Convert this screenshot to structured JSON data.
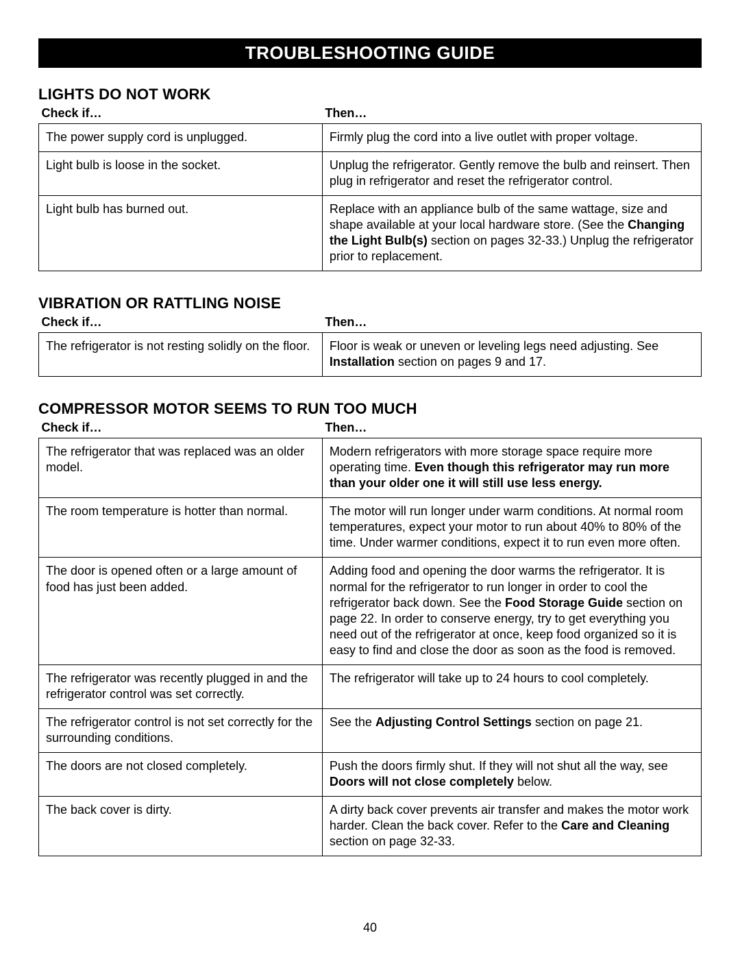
{
  "banner": "TROUBLESHOOTING GUIDE",
  "page_number": "40",
  "columns": {
    "check": "Check if…",
    "then": "Then…"
  },
  "sections": [
    {
      "title": "LIGHTS DO NOT WORK",
      "rows": [
        {
          "check": "The power supply cord is unplugged.",
          "then": [
            {
              "t": "Firmly plug the cord into a live outlet with proper voltage."
            }
          ]
        },
        {
          "check": "Light bulb is loose in the socket.",
          "then": [
            {
              "t": "Unplug the refrigerator. Gently remove the bulb and reinsert. Then plug in refrigerator and reset the refrigerator control."
            }
          ]
        },
        {
          "check": "Light bulb has burned out.",
          "then": [
            {
              "t": "Replace with an appliance bulb of the same wattage, size and shape available at your local hardware store. (See the "
            },
            {
              "t": "Changing the Light Bulb(s)",
              "b": true
            },
            {
              "t": " section on pages 32-33.) Unplug the refrigerator prior to replacement."
            }
          ]
        }
      ]
    },
    {
      "title": "VIBRATION OR RATTLING NOISE",
      "rows": [
        {
          "check": "The refrigerator is not resting solidly on the floor.",
          "then": [
            {
              "t": "Floor is weak or uneven or leveling legs need adjusting. See "
            },
            {
              "t": "Installation",
              "b": true
            },
            {
              "t": " section on pages 9 and 17."
            }
          ]
        }
      ]
    },
    {
      "title": "COMPRESSOR MOTOR SEEMS TO RUN TOO MUCH",
      "rows": [
        {
          "check": "The refrigerator that was replaced was an older model.",
          "then": [
            {
              "t": "Modern refrigerators with more storage space require more operating time. "
            },
            {
              "t": "Even though this refrigerator may run more than your older one it will still use less energy.",
              "b": true
            }
          ]
        },
        {
          "check": "The room temperature is hotter than normal.",
          "then": [
            {
              "t": "The motor will run longer under warm conditions. At normal room temperatures, expect your motor to run about 40% to 80% of the time. Under warmer conditions, expect it to run even more often."
            }
          ]
        },
        {
          "check": "The door is opened often or a large amount of food has just been added.",
          "then": [
            {
              "t": "Adding food and opening the door warms the refrigerator. It is normal for the refrigerator to run longer in order to cool the refrigerator back down. See the "
            },
            {
              "t": "Food Storage Guide",
              "b": true
            },
            {
              "t": " section on page 22. In order to conserve energy, try to get everything you need out of the refrigerator at once, keep food organized so it is easy to find and close the door as soon as the food is removed."
            }
          ]
        },
        {
          "check": "The refrigerator was recently plugged in and the refrigerator control was set correctly.",
          "then": [
            {
              "t": "The refrigerator will take up to 24 hours to cool completely."
            }
          ]
        },
        {
          "check": "The refrigerator control is not set correctly for the surrounding conditions.",
          "then": [
            {
              "t": "See the "
            },
            {
              "t": "Adjusting Control Settings",
              "b": true
            },
            {
              "t": " section on page 21."
            }
          ]
        },
        {
          "check": "The doors are not closed completely.",
          "then": [
            {
              "t": "Push the doors firmly shut. If they will not shut all the way, see "
            },
            {
              "t": "Doors will not close completely",
              "b": true
            },
            {
              "t": " below."
            }
          ]
        },
        {
          "check": "The back cover is dirty.",
          "then": [
            {
              "t": "A dirty back cover prevents air transfer and makes the motor work harder. Clean the back cover. Refer to the "
            },
            {
              "t": "Care and Cleaning",
              "b": true
            },
            {
              "t": " section on page 32-33."
            }
          ]
        }
      ]
    }
  ]
}
